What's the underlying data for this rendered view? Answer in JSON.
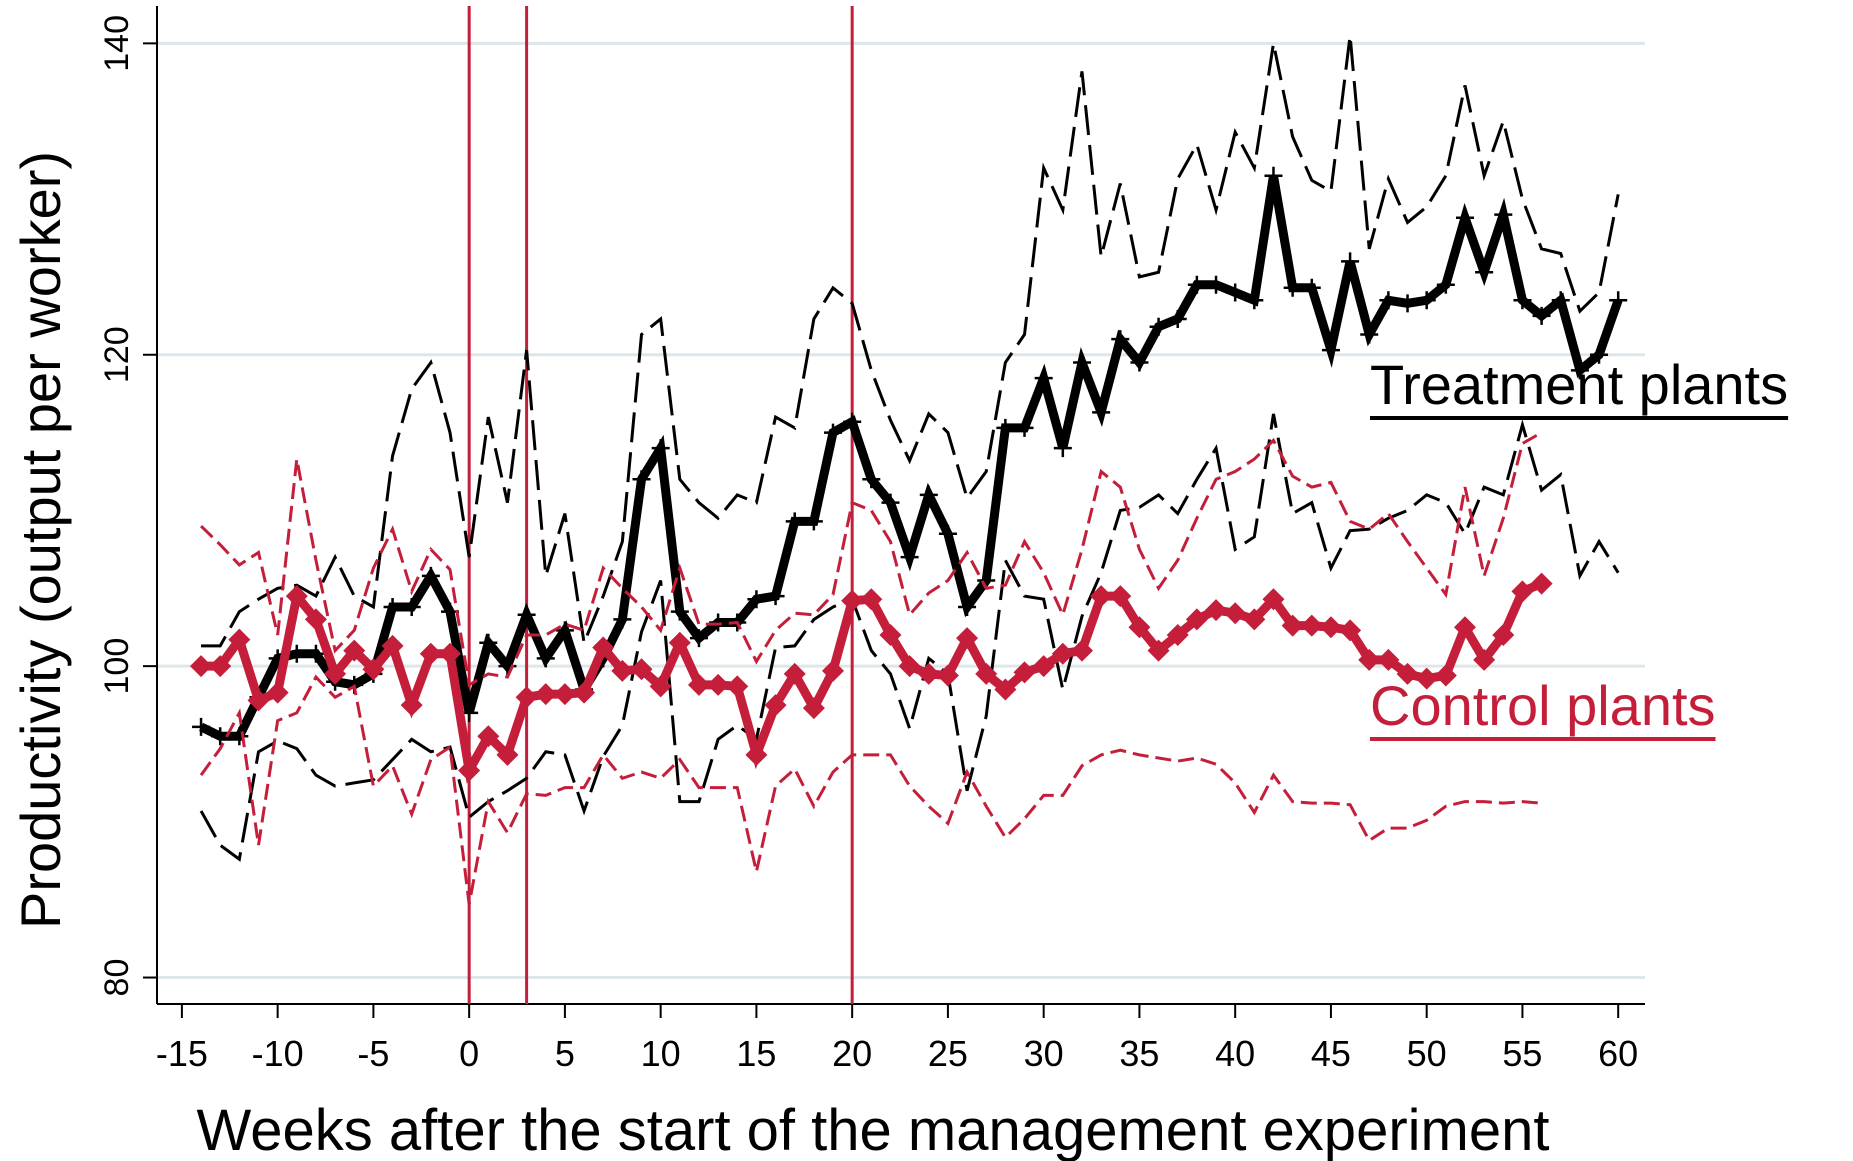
{
  "chart_data": {
    "type": "line",
    "x_label": "Weeks after the start of the management experiment",
    "y_label": "Productivity (output per worker)",
    "x": [
      -14,
      -13,
      -12,
      -11,
      -10,
      -9,
      -8,
      -7,
      -6,
      -5,
      -4,
      -3,
      -2,
      -1,
      0,
      1,
      2,
      3,
      4,
      5,
      6,
      7,
      8,
      9,
      10,
      11,
      12,
      13,
      14,
      15,
      16,
      17,
      18,
      19,
      20,
      21,
      22,
      23,
      24,
      25,
      26,
      27,
      28,
      29,
      30,
      31,
      32,
      33,
      34,
      35,
      36,
      37,
      38,
      39,
      40,
      41,
      42,
      43,
      44,
      45,
      46,
      47,
      48,
      49,
      50,
      51,
      52,
      53,
      54,
      55,
      56,
      57,
      58,
      59,
      60
    ],
    "series": [
      {
        "name": "Treatment plants",
        "color": "#000000",
        "style": "solid",
        "marker": "plus",
        "values": [
          96.1,
          95.5,
          95.5,
          98,
          100.5,
          100.8,
          100.8,
          99,
          98.8,
          99.5,
          103.8,
          103.8,
          105.8,
          103.5,
          97,
          101.5,
          100,
          103.3,
          100.5,
          102.3,
          98.5,
          100.5,
          103,
          112,
          114,
          103.5,
          101.8,
          102.8,
          102.8,
          104.3,
          104.5,
          109.3,
          109.3,
          115,
          115.7,
          112,
          110.5,
          107,
          111,
          108.5,
          103.8,
          105.5,
          115.3,
          115.3,
          118.5,
          114,
          119.5,
          116.3,
          121,
          119.5,
          121.8,
          122.3,
          124.5,
          124.5,
          124,
          123.5,
          131.5,
          124.3,
          124.3,
          120.3,
          126,
          121.3,
          123.5,
          123.3,
          123.5,
          124.5,
          128.8,
          125.3,
          129,
          123.5,
          122.5,
          123.5,
          119,
          120,
          123.5
        ]
      },
      {
        "color": "#000000",
        "style": "dashed",
        "values": [
          101.3,
          101.3,
          103.5,
          104.3,
          105,
          105.2,
          104.5,
          107,
          104.5,
          103.8,
          113.5,
          117.8,
          119.5,
          115,
          107,
          116,
          110.5,
          120.3,
          105.8,
          109.8,
          101.5,
          104.5,
          108,
          121.3,
          122.3,
          112,
          110.5,
          109.5,
          111,
          110.5,
          116,
          115.3,
          122.3,
          124.3,
          123.3,
          119,
          115.8,
          113.2,
          116.2,
          115,
          110.8,
          112.5,
          119.5,
          121.3,
          132,
          129.3,
          138.2,
          126.3,
          131,
          125,
          125.3,
          131.3,
          133.5,
          129.3,
          134.3,
          132,
          140,
          134,
          131.2,
          130.5,
          140.5,
          126.8,
          131.3,
          128.5,
          129.5,
          131.5,
          137.3,
          131.5,
          135,
          130,
          126.8,
          126.5,
          122.8,
          124,
          130.3
        ]
      },
      {
        "color": "#000000",
        "style": "dashed",
        "values": [
          90.7,
          88.5,
          87.6,
          94.5,
          95.2,
          94.7,
          93,
          92.3,
          92.5,
          92.7,
          94,
          95.3,
          94.5,
          94.8,
          90.3,
          91.3,
          92,
          92.8,
          94.5,
          94.3,
          90.7,
          94.2,
          96.2,
          102.2,
          105.5,
          91.3,
          91.3,
          95.3,
          96.2,
          95.3,
          101.2,
          101.3,
          103,
          103.8,
          104.3,
          101,
          99.5,
          96,
          100.5,
          99.5,
          92,
          96.8,
          106.8,
          104.5,
          104.3,
          98.5,
          103.2,
          106,
          110,
          110.2,
          111,
          109.8,
          112,
          114,
          107.5,
          108.3,
          116.2,
          109.8,
          110.5,
          106.3,
          108.7,
          108.8,
          109.5,
          110,
          111,
          110.5,
          108.5,
          111.5,
          111,
          115.5,
          111.3,
          112.3,
          105.8,
          108,
          106
        ]
      },
      {
        "name": "Control plants",
        "color": "#c41e3a",
        "style": "solid",
        "marker": "diamond",
        "values": [
          100,
          100,
          101.7,
          97.8,
          98.3,
          104.5,
          103,
          99.5,
          101,
          99.8,
          101.3,
          97.5,
          100.8,
          100.8,
          93.3,
          95.5,
          94.3,
          98,
          98.2,
          98.2,
          98.3,
          101.2,
          99.7,
          99.8,
          98.7,
          101.5,
          98.8,
          98.8,
          98.7,
          94.3,
          97.5,
          99.5,
          97.3,
          99.7,
          104.2,
          104.3,
          102,
          100,
          99.5,
          99.4,
          101.8,
          99.5,
          98.5,
          99.6,
          100,
          100.8,
          101,
          104.5,
          104.5,
          102.5,
          101,
          102,
          103,
          103.6,
          103.4,
          103,
          104.3,
          102.6,
          102.6,
          102.5,
          102.3,
          100.4,
          100.4,
          99.5,
          99.2,
          99.4,
          102.5,
          100.4,
          102,
          104.8,
          105.3,
          null,
          null,
          null,
          null
        ]
      },
      {
        "color": "#c41e3a",
        "style": "dashed",
        "values": [
          109,
          107.8,
          106.5,
          107.3,
          102,
          113.3,
          106.8,
          101,
          102.3,
          106.3,
          108.8,
          104.8,
          107.5,
          106.2,
          98.8,
          99.5,
          99.3,
          102,
          102,
          102.7,
          102.3,
          106.3,
          105,
          103.8,
          102.3,
          106.3,
          102.7,
          102.7,
          102.8,
          100.3,
          102.3,
          103.4,
          103.3,
          104.6,
          110.5,
          110,
          108,
          103.3,
          104.7,
          105.5,
          107.3,
          105,
          105.2,
          108,
          106,
          103.3,
          107.5,
          112.5,
          111.5,
          107.5,
          105,
          106.8,
          109.5,
          112,
          112.5,
          113.3,
          114.5,
          112.2,
          111.5,
          111.8,
          109.3,
          108.8,
          109.8,
          108,
          106.3,
          104.6,
          111.5,
          105.8,
          109.5,
          114.3,
          115,
          null,
          null,
          null,
          null
        ]
      },
      {
        "color": "#c41e3a",
        "style": "dashed",
        "values": [
          93,
          94.7,
          97,
          88.5,
          96.5,
          97,
          99.3,
          98,
          98.7,
          92.3,
          93.6,
          90.5,
          94,
          94.8,
          84.7,
          91.3,
          89.3,
          91.8,
          91.7,
          92.2,
          92.2,
          94.3,
          92.8,
          93.2,
          92.8,
          94,
          92.2,
          92.2,
          92.2,
          86.8,
          92.3,
          93.4,
          91,
          93.2,
          94.3,
          94.3,
          94.3,
          92.3,
          91,
          89.9,
          93.2,
          91,
          89,
          90.2,
          91.7,
          91.7,
          93.6,
          94.3,
          94.6,
          94.3,
          94.1,
          93.9,
          94.1,
          93.7,
          92.5,
          90.6,
          93,
          91.3,
          91.2,
          91.2,
          91.1,
          88.8,
          89.6,
          89.6,
          90.1,
          91,
          91.3,
          91.3,
          91.2,
          91.3,
          91.2,
          null,
          null,
          null,
          null
        ]
      }
    ],
    "vlines": [
      0,
      3,
      20
    ],
    "vline_color": "#c41e3a",
    "xlim": [
      -16.3,
      61.4
    ],
    "ylim": [
      78.3,
      142.4
    ],
    "xticks": [
      -15,
      -10,
      -5,
      0,
      5,
      10,
      15,
      20,
      25,
      30,
      35,
      40,
      45,
      50,
      55,
      60
    ],
    "yticks": [
      80,
      100,
      120,
      140
    ],
    "grid": true,
    "grid_color": "#dde6ea"
  }
}
